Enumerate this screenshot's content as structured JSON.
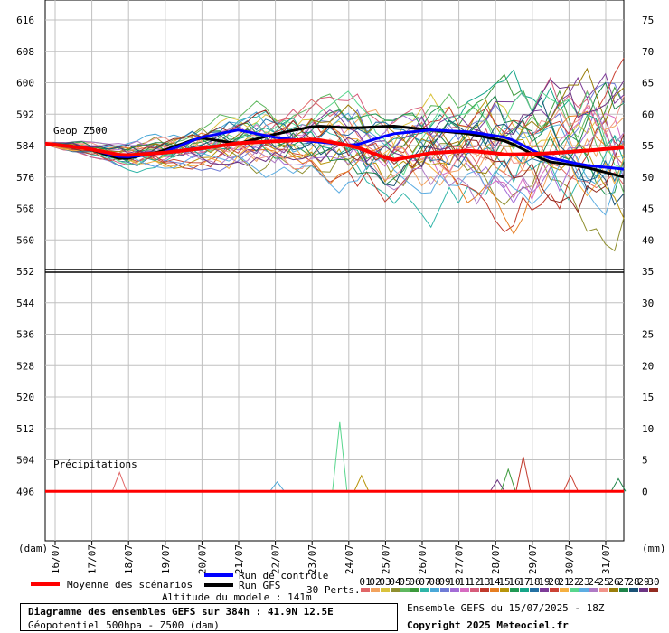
{
  "colors": {
    "mean": "#ff0000",
    "control": "#0000ff",
    "gfs": "#000000",
    "grid": "#c0c0c0",
    "perturbations": [
      "#e06666",
      "#f2a35e",
      "#d9c23c",
      "#8f8f30",
      "#5fb85f",
      "#3c9a3c",
      "#2fb5a8",
      "#4aa8d8",
      "#6f7bd6",
      "#a36cd6",
      "#d66cc1",
      "#d65c7a",
      "#c0392b",
      "#e67e22",
      "#b7950b",
      "#229954",
      "#17a589",
      "#2471a3",
      "#7d3c98",
      "#cb4335",
      "#f5b041",
      "#58d68d",
      "#5dade2",
      "#af7ac5",
      "#f1948a",
      "#9a7d0a",
      "#1e8449",
      "#1a5276",
      "#6c3483",
      "#922b21"
    ]
  },
  "chart_data": {
    "type": "line",
    "x": [
      "16/07",
      "17/07",
      "18/07",
      "19/07",
      "20/07",
      "21/07",
      "22/07",
      "23/07",
      "24/07",
      "25/07",
      "26/07",
      "27/07",
      "28/07",
      "29/07",
      "30/07",
      "31/07"
    ],
    "geopotential": {
      "label": "Geop Z500",
      "left_unit": "(dam)",
      "ticks": [
        616,
        608,
        600,
        592,
        584,
        576,
        568,
        560,
        552
      ],
      "right_ticks": [
        75,
        70,
        65,
        60,
        55,
        50,
        45,
        40,
        35
      ],
      "series": [
        {
          "name": "Moyenne des scénarios",
          "values": [
            584.5,
            583.4,
            581.5,
            582.1,
            583.2,
            584.6,
            585.1,
            585.6,
            583.8,
            580.3,
            582.1,
            582.7,
            581.7,
            582.0,
            582.7,
            583.5
          ]
        },
        {
          "name": "Run de contrôle",
          "values": [
            584.5,
            583.5,
            581.0,
            582.0,
            586.0,
            588.0,
            586.0,
            585.0,
            584.0,
            587.0,
            588.0,
            587.5,
            586.0,
            581.0,
            579.0,
            578.0
          ]
        },
        {
          "name": "Run GFS",
          "values": [
            584.5,
            583.5,
            580.5,
            582.5,
            586.0,
            584.5,
            587.0,
            589.0,
            588.5,
            589.0,
            588.0,
            587.0,
            585.0,
            580.0,
            578.5,
            576.0
          ]
        }
      ]
    },
    "precipitation": {
      "label": "Précipitations",
      "right_unit": "(mm)",
      "ticks": [
        544,
        536,
        528,
        520,
        512,
        504,
        496
      ],
      "right_ticks": [
        30,
        25,
        20,
        15,
        10,
        5,
        0
      ],
      "series_peaks_mm": [
        {
          "date": "18/07",
          "mm": 3.0
        },
        {
          "date": "22/07",
          "mm": 1.5
        },
        {
          "date": "24/07",
          "mm": 2.5
        },
        {
          "date": "24/07",
          "mm": 11.0
        },
        {
          "date": "28/07",
          "mm": 1.8
        },
        {
          "date": "28/07",
          "mm": 3.5
        },
        {
          "date": "29/07",
          "mm": 5.5
        },
        {
          "date": "30/07",
          "mm": 2.5
        },
        {
          "date": "31/07",
          "mm": 2.0
        }
      ]
    }
  },
  "legend": {
    "mean": "Moyenne des scénarios",
    "control": "Run de contrôle",
    "gfs": "Run GFS",
    "perts": "30 Perts.",
    "altitude": "Altitude du modele : 141m",
    "pert_numbers": [
      "01",
      "02",
      "03",
      "04",
      "05",
      "06",
      "07",
      "08",
      "09",
      "10",
      "11",
      "12",
      "13",
      "14",
      "15",
      "16",
      "17",
      "18",
      "19",
      "20",
      "21",
      "22",
      "23",
      "24",
      "25",
      "26",
      "27",
      "28",
      "29",
      "30"
    ]
  },
  "footer": {
    "title": "Diagramme des ensembles GEFS sur 384h : 41.9N 12.5E",
    "subtitle": "Géopotentiel 500hpa - Z500 (dam)",
    "run": "Ensemble GEFS du 15/07/2025 - 18Z",
    "copyright": "Copyright 2025 Meteociel.fr"
  }
}
